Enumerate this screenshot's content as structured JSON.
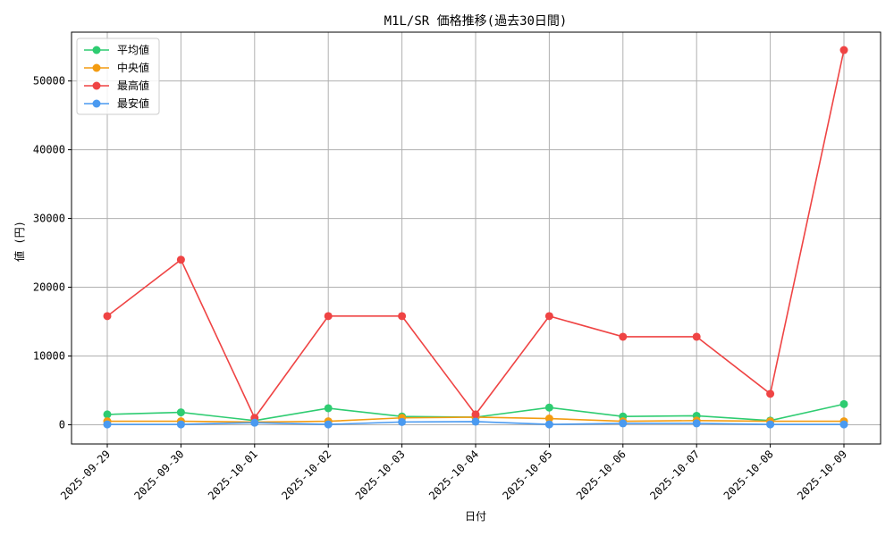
{
  "chart_data": {
    "type": "line",
    "title": "M1L/SR 価格推移(過去30日間)",
    "xlabel": "日付",
    "ylabel": "値 (円)",
    "categories": [
      "2025-09-29",
      "2025-09-30",
      "2025-10-01",
      "2025-10-02",
      "2025-10-03",
      "2025-10-04",
      "2025-10-05",
      "2025-10-06",
      "2025-10-07",
      "2025-10-08",
      "2025-10-09"
    ],
    "ylim": [
      -2800,
      57100
    ],
    "yticks": [
      0,
      10000,
      20000,
      30000,
      40000,
      50000
    ],
    "ytick_labels": [
      "0",
      "10000",
      "20000",
      "30000",
      "40000",
      "50000"
    ],
    "grid": true,
    "legend_position": "top-left",
    "series": [
      {
        "name": "平均値",
        "color": "#2ecc71",
        "values": [
          1500,
          1800,
          600,
          2400,
          1200,
          1100,
          2500,
          1200,
          1300,
          600,
          3000
        ]
      },
      {
        "name": "中央値",
        "color": "#f39c12",
        "values": [
          500,
          500,
          400,
          500,
          1000,
          1100,
          900,
          500,
          600,
          500,
          500
        ]
      },
      {
        "name": "最高値",
        "color": "#ef4444",
        "values": [
          15800,
          24000,
          1000,
          15800,
          15800,
          1500,
          15800,
          12800,
          12800,
          4500,
          54500
        ]
      },
      {
        "name": "最安値",
        "color": "#4a9af0",
        "values": [
          50,
          50,
          300,
          50,
          400,
          450,
          50,
          200,
          200,
          50,
          50
        ]
      }
    ]
  }
}
